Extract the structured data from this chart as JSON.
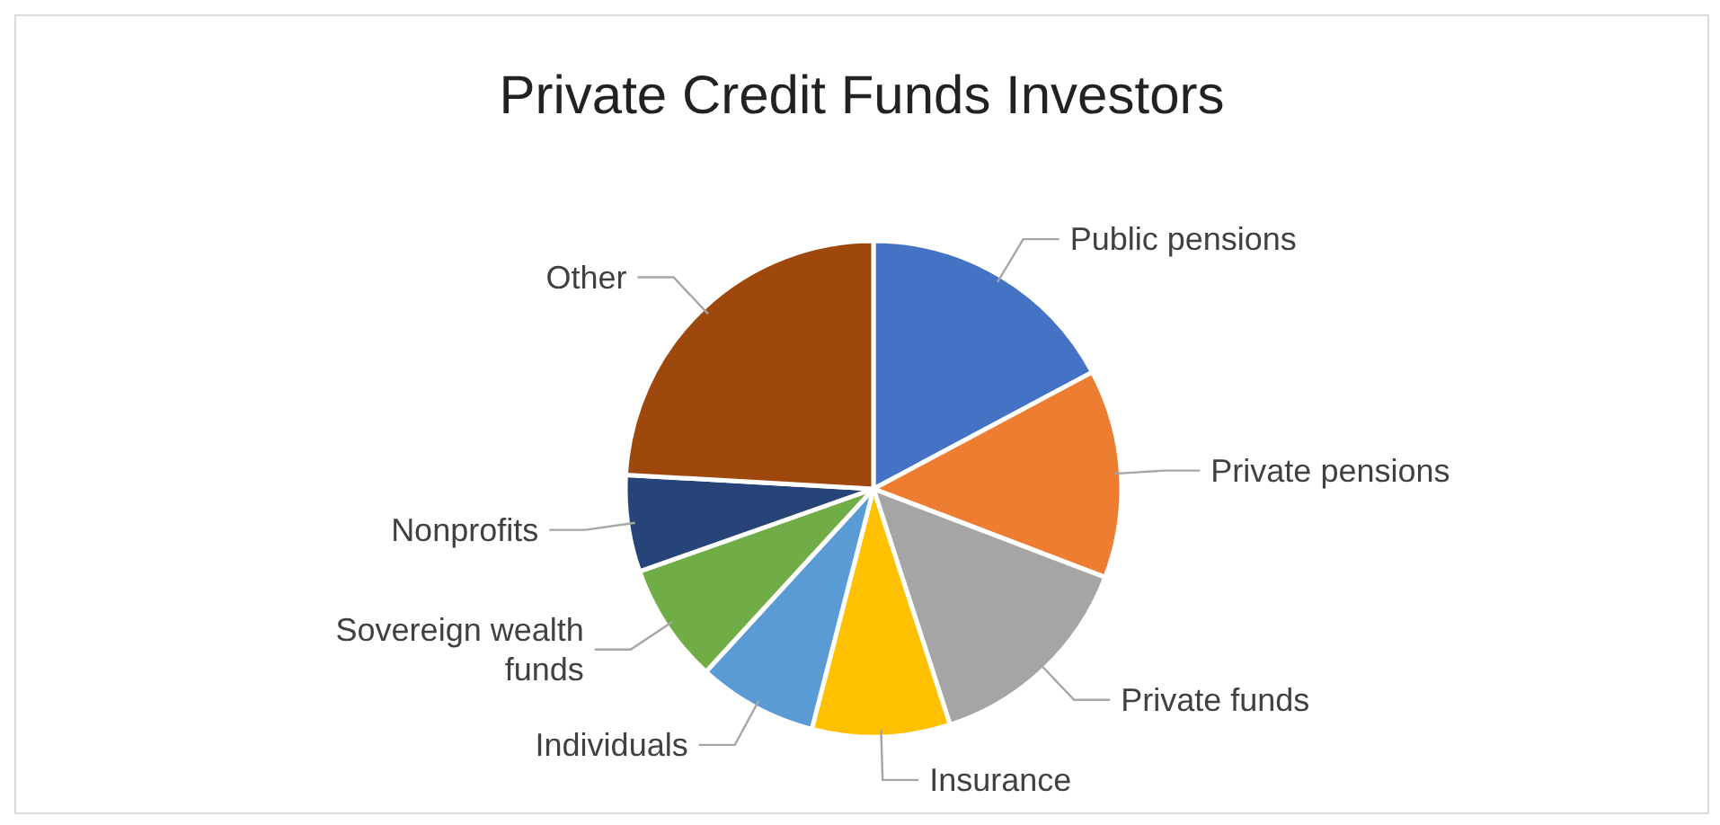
{
  "chart_data": {
    "type": "pie",
    "title": "Private Credit Funds Investors",
    "categories": [
      "Public pensions",
      "Private pensions",
      "Private funds",
      "Insurance",
      "Individuals",
      "Sovereign wealth funds",
      "Nonprofits",
      "Other"
    ],
    "values": [
      17.2,
      13.6,
      14.2,
      9,
      7.8,
      7.8,
      6.3,
      24.1
    ],
    "colors": [
      "#4472c4",
      "#ed7d31",
      "#a5a5a5",
      "#ffc000",
      "#5b9bd5",
      "#70ad47",
      "#264478",
      "#9e480e"
    ],
    "legend": false
  }
}
